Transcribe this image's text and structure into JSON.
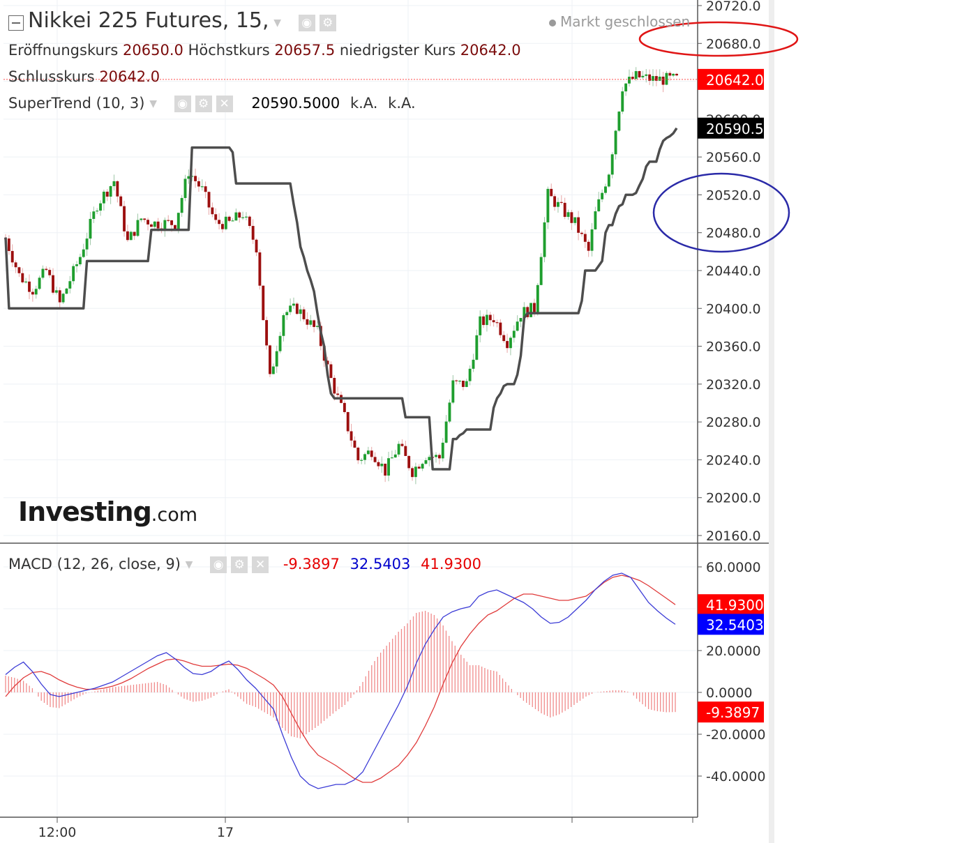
{
  "header": {
    "title": "Nikkei 225 Futures, 15,",
    "status": "Markt geschlossen",
    "ohlc": [
      {
        "label": "Eröffnungskurs",
        "value": "20650.0"
      },
      {
        "label": "Höchstkurs",
        "value": "20657.5"
      },
      {
        "label": "niedrigster Kurs",
        "value": "20642.0"
      }
    ],
    "close": {
      "label": "Schlusskurs",
      "value": "20642.0"
    }
  },
  "supertrend": {
    "label": "SuperTrend (10, 3)",
    "value": "20590.5000",
    "na1": "k.A.",
    "na2": "k.A."
  },
  "macd": {
    "label": "MACD (12, 26, close, 9)",
    "hist": "-9.3897",
    "macd": "32.5403",
    "signal": "41.9300"
  },
  "logo": {
    "main": "Investing",
    "domain": ".com"
  },
  "colors": {
    "up": "#1e9e2e",
    "down": "#9c0f0f",
    "supertrend": "#4d4d4d",
    "macd_line": "#3b3bd6",
    "signal_line": "#e03a3a",
    "histogram": "#f08a8a",
    "price_tag": "#ff0000",
    "st_tag": "#000000",
    "macd_tag": "#0000ff",
    "annotation_red": "#e01515",
    "annotation_blue": "#2a2aa8"
  },
  "chart_data": [
    {
      "type": "candlestick",
      "title": "Nikkei 225 Futures, 15,",
      "ylim": [
        20160,
        20720
      ],
      "yticks": [
        "20720.0",
        "20680.0",
        "20560.0",
        "20520.0",
        "20480.0",
        "20440.0",
        "20400.0",
        "20360.0",
        "20320.0",
        "20280.0",
        "20240.0",
        "20200.0",
        "20160.0"
      ],
      "xticks": [
        "12:00",
        "17"
      ],
      "price_tags": [
        {
          "value": 20642.0,
          "label": "20642.0",
          "role": "price"
        },
        {
          "value": 20590.5,
          "label": "20590.5",
          "role": "supertrend"
        }
      ],
      "series": [
        {
          "name": "SuperTrend (10, 3)",
          "type": "line",
          "values": [
            20475,
            20400,
            20400,
            20400,
            20400,
            20400,
            20400,
            20400,
            20400,
            20400,
            20400,
            20400,
            20400,
            20400,
            20400,
            20400,
            20400,
            20400,
            20400,
            20400,
            20400,
            20400,
            20400,
            20400,
            20450,
            20450,
            20450,
            20450,
            20450,
            20450,
            20450,
            20450,
            20450,
            20450,
            20450,
            20450,
            20450,
            20450,
            20450,
            20450,
            20450,
            20450,
            20450,
            20483,
            20483,
            20483,
            20483,
            20483,
            20483,
            20483,
            20483,
            20483,
            20483,
            20483,
            20483,
            20570,
            20570,
            20570,
            20570,
            20570,
            20570,
            20570,
            20570,
            20570,
            20570,
            20570,
            20570,
            20565,
            20532,
            20532,
            20532,
            20532,
            20532,
            20532,
            20532,
            20532,
            20532,
            20532,
            20532,
            20532,
            20532,
            20532,
            20532,
            20532,
            20532,
            20510,
            20491,
            20465,
            20454,
            20440,
            20430,
            20418,
            20395,
            20375,
            20360,
            20330,
            20310,
            20305,
            20305,
            20305,
            20305,
            20305,
            20305,
            20305,
            20305,
            20305,
            20305,
            20305,
            20305,
            20305,
            20305,
            20305,
            20305,
            20305,
            20305,
            20305,
            20305,
            20305,
            20285,
            20285,
            20285,
            20285,
            20285,
            20285,
            20285,
            20285,
            20230,
            20230,
            20230,
            20230,
            20230,
            20230,
            20262,
            20262,
            20266,
            20268,
            20272,
            20272,
            20272,
            20272,
            20272,
            20272,
            20272,
            20272,
            20295,
            20305,
            20310,
            20318,
            20320,
            20320,
            20320,
            20330,
            20350,
            20390,
            20395,
            20395,
            20395,
            20395,
            20395,
            20395,
            20395,
            20395,
            20395,
            20395,
            20395,
            20395,
            20395,
            20395,
            20395,
            20395,
            20408,
            20440,
            20440,
            20440,
            20440,
            20445,
            20450,
            20480,
            20488,
            20488,
            20500,
            20508,
            20510,
            20520,
            20520,
            20520,
            20522,
            20530,
            20537,
            20550,
            20555,
            20555,
            20555,
            20568,
            20577,
            20580,
            20582,
            20585,
            20590.5
          ]
        },
        {
          "name": "OHLC",
          "type": "candles",
          "count": 192,
          "open_first": 20474,
          "close_last": 20642.0
        }
      ]
    },
    {
      "type": "line",
      "title": "MACD (12, 26, close, 9)",
      "ylim": [
        -60,
        70
      ],
      "yticks": [
        "60.0000",
        "20.0000",
        "0.0000",
        "-20.0000",
        "-40.0000"
      ],
      "tags": [
        {
          "value": 41.93,
          "label": "41.9300",
          "role": "signal"
        },
        {
          "value": 32.5403,
          "label": "32.5403",
          "role": "macd"
        },
        {
          "value": -9.3897,
          "label": "-9.3897",
          "role": "histogram"
        }
      ],
      "series": [
        {
          "name": "MACD",
          "values": [
            8.5,
            12,
            14.5,
            10,
            4,
            -1,
            -2,
            -1,
            0,
            1,
            2,
            3.5,
            5,
            7.5,
            10,
            12.5,
            15,
            17.5,
            19,
            16,
            12,
            9,
            8.5,
            10,
            13,
            15,
            11,
            6,
            2,
            -3,
            -8,
            -20,
            -31,
            -40,
            -44,
            -46,
            -45,
            -44,
            -44,
            -42,
            -38,
            -30,
            -22,
            -14,
            -6,
            3,
            14,
            23,
            30,
            36,
            38.5,
            40,
            41,
            46,
            48,
            49,
            47,
            45,
            43,
            40,
            36,
            33,
            33.5,
            36,
            40,
            44,
            49,
            53,
            56,
            57,
            55,
            49,
            43,
            39,
            35.5,
            32.54
          ]
        },
        {
          "name": "Signal",
          "values": [
            -2,
            3,
            7,
            9.5,
            10,
            8.5,
            6,
            4,
            2.5,
            1.5,
            1.5,
            2,
            3,
            4.5,
            6.5,
            9,
            11.5,
            13.5,
            15.5,
            16,
            15,
            13.5,
            12.5,
            12.5,
            13,
            13.5,
            13,
            11.5,
            9,
            6.5,
            3.5,
            -2,
            -10,
            -18,
            -25,
            -30,
            -32.5,
            -35,
            -38,
            -41,
            -43,
            -43,
            -41,
            -38,
            -35,
            -30,
            -24,
            -16,
            -7,
            4,
            14,
            22,
            28,
            33,
            37,
            39,
            42,
            45,
            47,
            47,
            46,
            45,
            44,
            44,
            45,
            46,
            49,
            52.5,
            55,
            56,
            55,
            53.5,
            51,
            48,
            45,
            41.93
          ]
        },
        {
          "name": "Histogram",
          "values": [
            8,
            7,
            5.5,
            2,
            -4,
            -7,
            -7.5,
            -5,
            -2.5,
            -0.5,
            0.5,
            1.5,
            2.5,
            3,
            3.5,
            4,
            4.5,
            5,
            3.5,
            0,
            -3,
            -4.5,
            -4,
            -2.5,
            0,
            1.5,
            -2,
            -5.5,
            -7,
            -9.5,
            -12,
            -17,
            -21,
            -22,
            -19,
            -16,
            -12.5,
            -9,
            -6,
            -1,
            5,
            13,
            19,
            24,
            29,
            33,
            38,
            39,
            37,
            32,
            24.5,
            18,
            13,
            13,
            11,
            10,
            5,
            0,
            -4,
            -7,
            -10,
            -12,
            -10.5,
            -8,
            -5,
            -2,
            0,
            0.5,
            1,
            1,
            0,
            -4.5,
            -8,
            -9,
            -9.5,
            -9.39
          ]
        }
      ]
    }
  ]
}
